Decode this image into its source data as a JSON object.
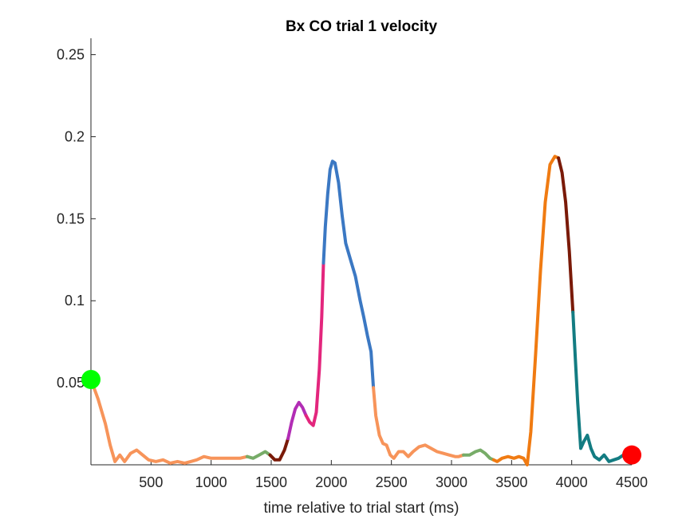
{
  "chart_data": {
    "type": "line",
    "title": "Bx  CO trial 1 velocity",
    "xlabel": "time relative to trial start (ms)",
    "ylabel": "",
    "xlim": [
      0,
      4500
    ],
    "ylim": [
      0,
      0.26
    ],
    "x_ticks": [
      500,
      1000,
      1500,
      2000,
      2500,
      3000,
      3500,
      4000,
      4500
    ],
    "y_ticks": [
      0.05,
      0.1,
      0.15,
      0.2,
      0.25
    ],
    "x_tick_labels": [
      "500",
      "1000",
      "1500",
      "2000",
      "2500",
      "3000",
      "3500",
      "4000",
      "4500"
    ],
    "y_tick_labels": [
      "0.05",
      "0.1",
      "0.15",
      "0.2",
      "0.25"
    ],
    "grid": false,
    "segments": [
      {
        "color": "#f7945a",
        "points": [
          [
            0,
            0.052
          ],
          [
            60,
            0.04
          ],
          [
            120,
            0.025
          ],
          [
            160,
            0.012
          ],
          [
            200,
            0.002
          ],
          [
            240,
            0.006
          ],
          [
            280,
            0.002
          ],
          [
            330,
            0.007
          ],
          [
            380,
            0.009
          ],
          [
            430,
            0.006
          ],
          [
            480,
            0.003
          ],
          [
            540,
            0.002
          ],
          [
            600,
            0.003
          ],
          [
            660,
            0.001
          ],
          [
            720,
            0.002
          ],
          [
            780,
            0.001
          ],
          [
            830,
            0.002
          ],
          [
            880,
            0.003
          ],
          [
            940,
            0.005
          ],
          [
            1000,
            0.004
          ],
          [
            1060,
            0.004
          ],
          [
            1120,
            0.004
          ],
          [
            1180,
            0.004
          ],
          [
            1240,
            0.004
          ],
          [
            1300,
            0.005
          ]
        ]
      },
      {
        "color": "#77ac68",
        "points": [
          [
            1300,
            0.005
          ],
          [
            1350,
            0.004
          ],
          [
            1400,
            0.006
          ],
          [
            1450,
            0.008
          ],
          [
            1490,
            0.006
          ]
        ]
      },
      {
        "color": "#7a1a08",
        "points": [
          [
            1490,
            0.006
          ],
          [
            1530,
            0.003
          ],
          [
            1570,
            0.003
          ],
          [
            1610,
            0.009
          ],
          [
            1640,
            0.016
          ]
        ]
      },
      {
        "color": "#b22db5",
        "points": [
          [
            1640,
            0.016
          ],
          [
            1670,
            0.026
          ],
          [
            1700,
            0.034
          ],
          [
            1730,
            0.038
          ],
          [
            1760,
            0.035
          ],
          [
            1790,
            0.03
          ]
        ]
      },
      {
        "color": "#e3267d",
        "points": [
          [
            1790,
            0.03
          ],
          [
            1820,
            0.026
          ],
          [
            1850,
            0.024
          ],
          [
            1875,
            0.032
          ],
          [
            1900,
            0.058
          ],
          [
            1920,
            0.09
          ],
          [
            1935,
            0.123
          ]
        ]
      },
      {
        "color": "#3b78c3",
        "points": [
          [
            1935,
            0.123
          ],
          [
            1950,
            0.145
          ],
          [
            1970,
            0.165
          ],
          [
            1990,
            0.18
          ],
          [
            2010,
            0.185
          ],
          [
            2030,
            0.184
          ],
          [
            2060,
            0.172
          ],
          [
            2090,
            0.152
          ],
          [
            2120,
            0.135
          ],
          [
            2160,
            0.125
          ],
          [
            2200,
            0.115
          ],
          [
            2240,
            0.1
          ],
          [
            2270,
            0.09
          ],
          [
            2300,
            0.079
          ],
          [
            2330,
            0.069
          ],
          [
            2350,
            0.047
          ]
        ]
      },
      {
        "color": "#f7945a",
        "points": [
          [
            2350,
            0.047
          ],
          [
            2370,
            0.03
          ],
          [
            2400,
            0.018
          ],
          [
            2430,
            0.013
          ],
          [
            2460,
            0.012
          ],
          [
            2490,
            0.006
          ],
          [
            2520,
            0.004
          ],
          [
            2560,
            0.008
          ],
          [
            2600,
            0.008
          ],
          [
            2640,
            0.005
          ],
          [
            2680,
            0.008
          ],
          [
            2730,
            0.011
          ],
          [
            2780,
            0.012
          ],
          [
            2830,
            0.01
          ],
          [
            2880,
            0.008
          ],
          [
            2930,
            0.007
          ],
          [
            2980,
            0.006
          ],
          [
            3030,
            0.005
          ],
          [
            3060,
            0.005
          ],
          [
            3100,
            0.006
          ]
        ]
      },
      {
        "color": "#77ac68",
        "points": [
          [
            3100,
            0.006
          ],
          [
            3150,
            0.006
          ],
          [
            3200,
            0.008
          ],
          [
            3240,
            0.009
          ],
          [
            3280,
            0.007
          ],
          [
            3320,
            0.004
          ],
          [
            3350,
            0.003
          ]
        ]
      },
      {
        "color": "#f07b12",
        "points": [
          [
            3350,
            0.003
          ],
          [
            3380,
            0.002
          ],
          [
            3420,
            0.004
          ],
          [
            3470,
            0.005
          ],
          [
            3520,
            0.004
          ],
          [
            3560,
            0.005
          ],
          [
            3600,
            0.004
          ],
          [
            3630,
            0.0
          ],
          [
            3660,
            0.02
          ],
          [
            3700,
            0.068
          ],
          [
            3740,
            0.118
          ],
          [
            3780,
            0.16
          ],
          [
            3820,
            0.183
          ],
          [
            3860,
            0.188
          ],
          [
            3890,
            0.187
          ]
        ]
      },
      {
        "color": "#7a1a08",
        "points": [
          [
            3890,
            0.187
          ],
          [
            3920,
            0.178
          ],
          [
            3950,
            0.16
          ],
          [
            3980,
            0.13
          ],
          [
            4010,
            0.093
          ]
        ]
      },
      {
        "color": "#137c82",
        "points": [
          [
            4010,
            0.093
          ],
          [
            4030,
            0.065
          ],
          [
            4050,
            0.038
          ],
          [
            4075,
            0.01
          ],
          [
            4100,
            0.014
          ],
          [
            4130,
            0.018
          ],
          [
            4160,
            0.01
          ],
          [
            4190,
            0.005
          ],
          [
            4230,
            0.003
          ],
          [
            4270,
            0.006
          ],
          [
            4310,
            0.002
          ],
          [
            4350,
            0.003
          ],
          [
            4390,
            0.004
          ],
          [
            4430,
            0.006
          ],
          [
            4470,
            0.006
          ],
          [
            4500,
            0.006
          ]
        ]
      }
    ],
    "markers": [
      {
        "x": 0,
        "y": 0.052,
        "color": "#00ff00"
      },
      {
        "x": 4500,
        "y": 0.006,
        "color": "#ff0000"
      }
    ]
  }
}
